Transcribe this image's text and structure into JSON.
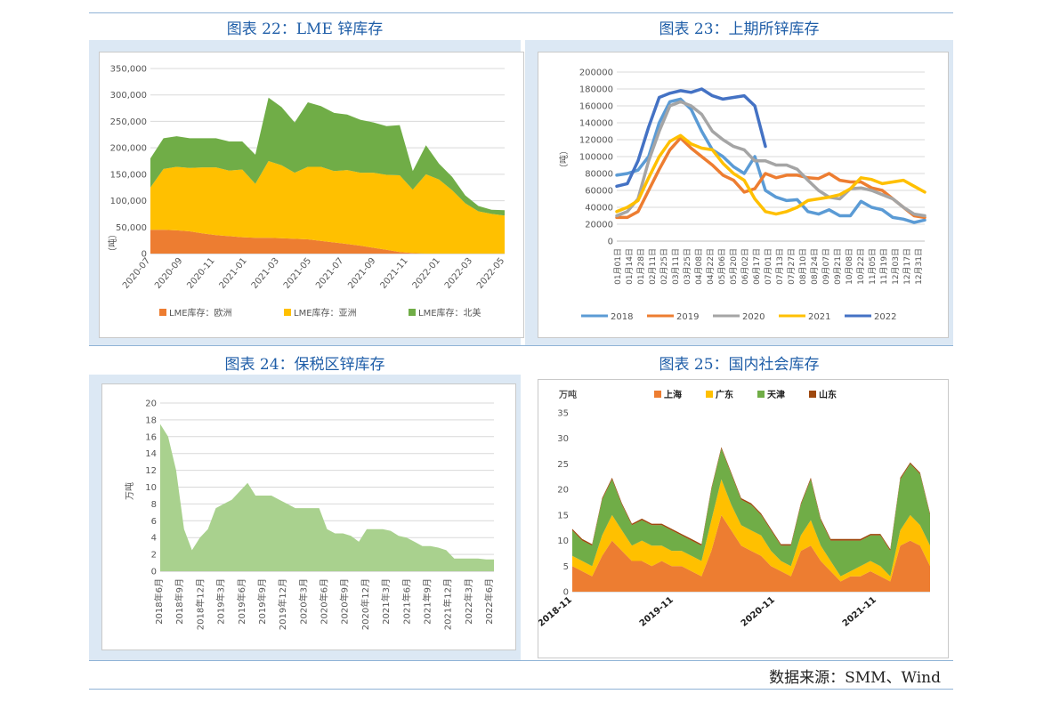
{
  "panels": [
    {
      "title": "图表 22：LME 锌库存"
    },
    {
      "title": "图表 23：上期所锌库存"
    },
    {
      "title": "图表 24：保税区锌库存"
    },
    {
      "title": "图表 25：国内社会库存"
    }
  ],
  "source": "数据来源：SMM、Wind",
  "chart_data": [
    {
      "type": "area",
      "stacked": true,
      "ylabel": "（吨）",
      "ylim": [
        0,
        350000
      ],
      "yticks": [
        "0",
        "50,000",
        "100,000",
        "150,000",
        "200,000",
        "250,000",
        "300,000",
        "350,000"
      ],
      "xticks": [
        "2020-07",
        "2020-09",
        "2020-11",
        "2021-01",
        "2021-03",
        "2021-05",
        "2021-07",
        "2021-09",
        "2021-11",
        "2022-01",
        "2022-03",
        "2022-05"
      ],
      "legend_position": "bottom",
      "series": [
        {
          "name": "LME库存：欧洲",
          "color": "#ed7d31",
          "values": [
            45000,
            45000,
            44000,
            42000,
            38000,
            35000,
            33000,
            31000,
            30000,
            30000,
            29000,
            28000,
            27000,
            24000,
            21000,
            18000,
            15000,
            11000,
            7000,
            3000,
            1000,
            0,
            0,
            0,
            0,
            0,
            0,
            0
          ]
        },
        {
          "name": "LME库存：亚洲",
          "color": "#ffc000",
          "values": [
            80000,
            115000,
            120000,
            120000,
            125000,
            128000,
            124000,
            128000,
            102000,
            145000,
            138000,
            125000,
            137000,
            140000,
            135000,
            140000,
            138000,
            142000,
            142000,
            145000,
            120000,
            150000,
            140000,
            120000,
            95000,
            80000,
            75000,
            72000
          ]
        },
        {
          "name": "LME库存：北美",
          "color": "#70ad47",
          "values": [
            55000,
            58000,
            58000,
            56000,
            55000,
            55000,
            55000,
            53000,
            55000,
            120000,
            110000,
            95000,
            122000,
            115000,
            110000,
            105000,
            100000,
            95000,
            92000,
            95000,
            35000,
            55000,
            30000,
            25000,
            15000,
            10000,
            8000,
            10000
          ]
        }
      ]
    },
    {
      "type": "line",
      "ylabel": "（吨）",
      "ylim": [
        0,
        200000
      ],
      "yticks": [
        "0",
        "20000",
        "40000",
        "60000",
        "80000",
        "100000",
        "120000",
        "140000",
        "160000",
        "180000",
        "200000"
      ],
      "xticks": [
        "01月01日",
        "01月14日",
        "01月28日",
        "02月11日",
        "02月25日",
        "03月11日",
        "03月25日",
        "04月08日",
        "04月22日",
        "05月06日",
        "05月20日",
        "06月02日",
        "06月17日",
        "07月01日",
        "07月13日",
        "07月27日",
        "08月10日",
        "08月24日",
        "09月07日",
        "09月21日",
        "10月08日",
        "10月22日",
        "11月05日",
        "11月19日",
        "12月03日",
        "12月17日",
        "12月31日"
      ],
      "legend_position": "bottom",
      "series": [
        {
          "name": "2018",
          "color": "#5b9bd5",
          "values": [
            78000,
            80000,
            84000,
            100000,
            140000,
            165000,
            168000,
            156000,
            130000,
            108000,
            100000,
            88000,
            80000,
            100000,
            60000,
            52000,
            48000,
            49000,
            35000,
            32000,
            37000,
            30000,
            30000,
            47000,
            40000,
            37000,
            28000,
            26000,
            22000,
            25000
          ]
        },
        {
          "name": "2019",
          "color": "#ed7d31",
          "values": [
            28000,
            28000,
            35000,
            60000,
            85000,
            108000,
            122000,
            110000,
            100000,
            90000,
            78000,
            72000,
            58000,
            62000,
            80000,
            75000,
            78000,
            78000,
            75000,
            74000,
            80000,
            72000,
            70000,
            70000,
            63000,
            60000,
            50000,
            40000,
            30000,
            28000
          ]
        },
        {
          "name": "2020",
          "color": "#a5a5a5",
          "values": [
            30000,
            35000,
            50000,
            95000,
            130000,
            160000,
            165000,
            160000,
            150000,
            130000,
            120000,
            112000,
            108000,
            95000,
            95000,
            90000,
            90000,
            85000,
            72000,
            60000,
            52000,
            50000,
            62000,
            63000,
            60000,
            55000,
            50000,
            40000,
            32000,
            30000
          ]
        },
        {
          "name": "2021",
          "color": "#ffc000",
          "values": [
            35000,
            40000,
            48000,
            75000,
            100000,
            118000,
            125000,
            115000,
            110000,
            108000,
            92000,
            80000,
            72000,
            50000,
            35000,
            32000,
            35000,
            40000,
            48000,
            50000,
            52000,
            55000,
            62000,
            75000,
            73000,
            68000,
            70000,
            72000,
            65000,
            58000
          ]
        },
        {
          "name": "2022",
          "color": "#4472c4",
          "values": [
            65000,
            68000,
            95000,
            135000,
            170000,
            175000,
            178000,
            176000,
            180000,
            172000,
            168000,
            170000,
            172000,
            160000,
            112000,
            null,
            null,
            null,
            null,
            null,
            null,
            null,
            null,
            null,
            null,
            null,
            null,
            null,
            null,
            null
          ]
        }
      ]
    },
    {
      "type": "area",
      "ylabel": "万吨",
      "ylim": [
        0,
        20
      ],
      "yticks": [
        "0",
        "2",
        "4",
        "6",
        "8",
        "10",
        "12",
        "14",
        "16",
        "18",
        "20"
      ],
      "xticks": [
        "2018年6月",
        "2018年9月",
        "2018年12月",
        "2019年3月",
        "2019年6月",
        "2019年9月",
        "2019年12月",
        "2020年3月",
        "2020年6月",
        "2020年9月",
        "2020年12月",
        "2021年3月",
        "2021年6月",
        "2021年9月",
        "2021年12月",
        "2022年3月",
        "2022年6月"
      ],
      "series": [
        {
          "name": "保税区锌库存",
          "color": "#a9d18e",
          "values": [
            17.5,
            16,
            12,
            5,
            2.5,
            4,
            5,
            7.5,
            8,
            8.5,
            9.5,
            10.5,
            9,
            9,
            9,
            8.5,
            8,
            7.5,
            7.5,
            7.5,
            7.5,
            5,
            4.5,
            4.5,
            4.2,
            3.5,
            5,
            5,
            5,
            4.8,
            4.2,
            4,
            3.5,
            3,
            3,
            2.8,
            2.5,
            1.5,
            1.5,
            1.5,
            1.5,
            1.4,
            1.4
          ]
        }
      ]
    },
    {
      "type": "area",
      "stacked": true,
      "ylabel": "万吨",
      "ylim": [
        0,
        35
      ],
      "yticks": [
        "0",
        "5",
        "10",
        "15",
        "20",
        "25",
        "30",
        "35"
      ],
      "xticks": [
        "2018-11",
        "2019-11",
        "2020-11",
        "2021-11"
      ],
      "legend_position": "top",
      "series": [
        {
          "name": "上海",
          "color": "#ed7d31",
          "values": [
            5,
            4,
            3,
            7,
            10,
            8,
            6,
            6,
            5,
            6,
            5,
            5,
            4,
            3,
            8,
            15,
            12,
            9,
            8,
            7,
            5,
            4,
            3,
            8,
            9,
            6,
            4,
            2,
            3,
            3,
            4,
            3,
            2,
            9,
            10,
            9,
            5
          ]
        },
        {
          "name": "广东",
          "color": "#ffc000",
          "values": [
            2,
            2,
            2,
            4,
            5,
            4,
            3,
            4,
            4,
            3,
            3,
            3,
            3,
            3,
            6,
            7,
            5,
            4,
            4,
            4,
            3,
            2,
            2,
            3,
            5,
            3,
            2,
            1,
            1,
            2,
            2,
            2,
            1,
            3,
            5,
            4,
            4
          ]
        },
        {
          "name": "天津",
          "color": "#70ad47",
          "values": [
            5,
            4,
            4,
            7,
            7,
            5,
            4,
            4,
            4,
            4,
            4,
            3,
            3,
            3,
            6,
            6,
            6,
            5,
            5,
            4,
            4,
            3,
            4,
            6,
            8,
            5,
            4,
            7,
            6,
            5,
            5,
            6,
            5,
            10,
            10,
            10,
            6
          ]
        },
        {
          "name": "山东",
          "color": "#9e480e",
          "values": [
            0.3,
            0.3,
            0.3,
            0.3,
            0.3,
            0.3,
            0.3,
            0.3,
            0.3,
            0.3,
            0.3,
            0.3,
            0.3,
            0.3,
            0.3,
            0.3,
            0.3,
            0.3,
            0.3,
            0.3,
            0.3,
            0.3,
            0.3,
            0.3,
            0.3,
            0.3,
            0.3,
            0.3,
            0.3,
            0.3,
            0.3,
            0.3,
            0.3,
            0.3,
            0.3,
            0.3,
            0.3
          ]
        }
      ]
    }
  ]
}
